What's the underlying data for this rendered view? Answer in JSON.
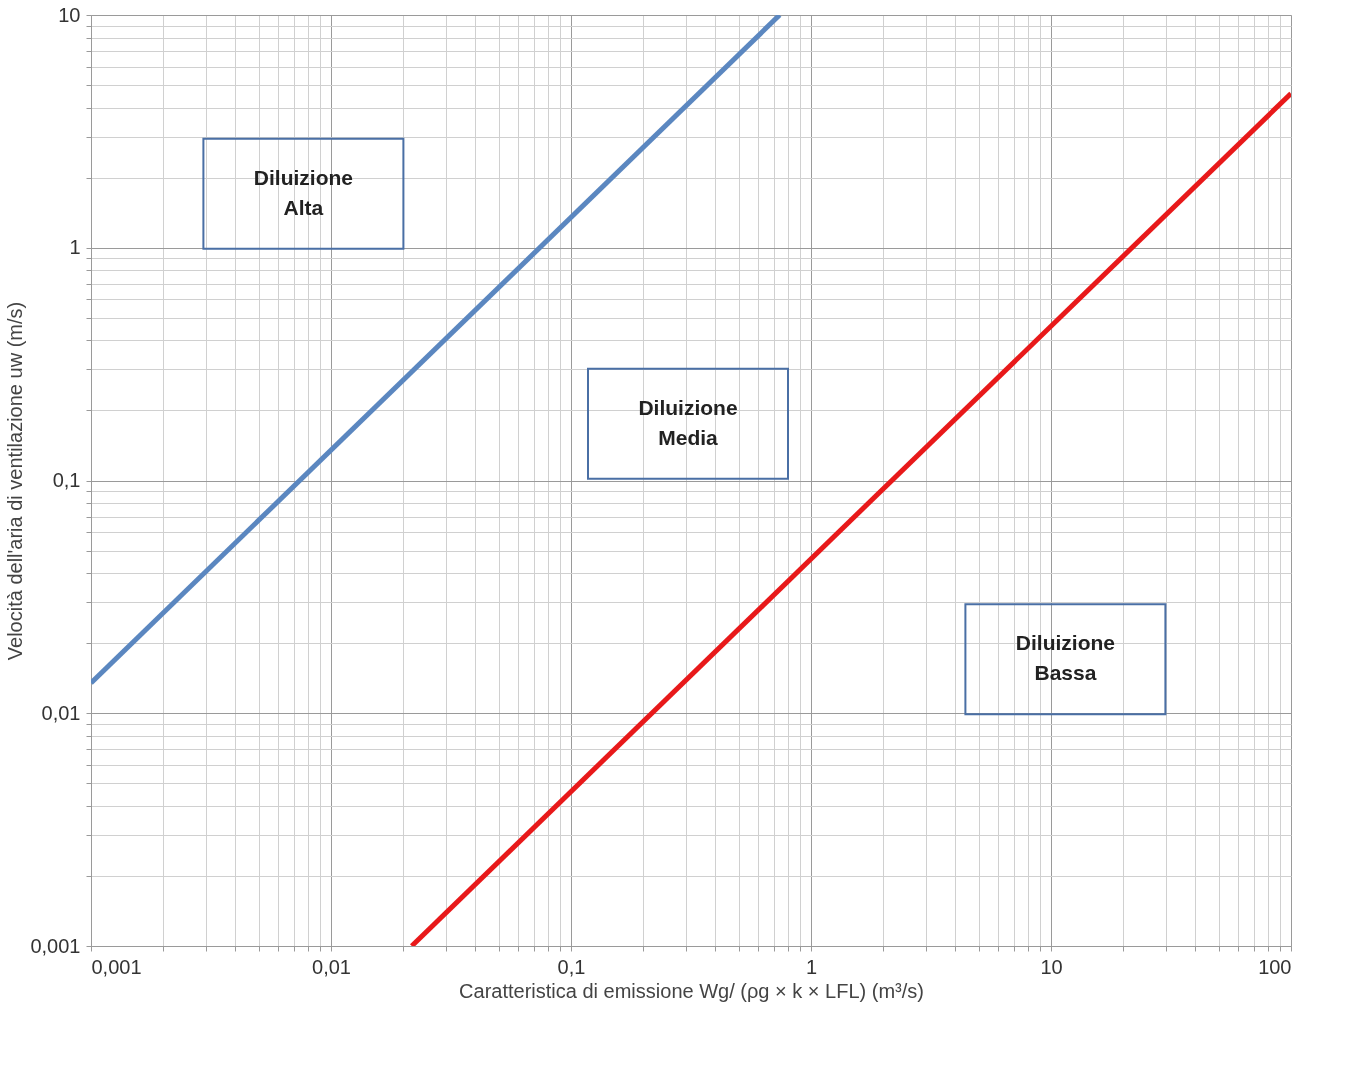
{
  "chart_data": {
    "type": "line",
    "xlabel": "Caratteristica di emissione  Wg/ (ρg × k × LFL)   (m³/s)",
    "ylabel": "Velocità dell'aria di ventilazione uw  (m/s)",
    "log": "xy",
    "grid": true,
    "marker": "none",
    "line_style": "solid",
    "xlim": [
      0.001,
      100
    ],
    "ylim": [
      0.001,
      10
    ],
    "xticks": [
      {
        "value": 0.001,
        "label": "0,001"
      },
      {
        "value": 0.002,
        "label": null
      },
      {
        "value": 0.003,
        "label": null
      },
      {
        "value": 0.004,
        "label": null
      },
      {
        "value": 0.005,
        "label": null
      },
      {
        "value": 0.006,
        "label": null
      },
      {
        "value": 0.007,
        "label": null
      },
      {
        "value": 0.008,
        "label": null
      },
      {
        "value": 0.009,
        "label": null
      },
      {
        "value": 0.01,
        "label": "0,01"
      },
      {
        "value": 0.02,
        "label": null
      },
      {
        "value": 0.03,
        "label": null
      },
      {
        "value": 0.04,
        "label": null
      },
      {
        "value": 0.05,
        "label": null
      },
      {
        "value": 0.06,
        "label": null
      },
      {
        "value": 0.07,
        "label": null
      },
      {
        "value": 0.08,
        "label": null
      },
      {
        "value": 0.09,
        "label": null
      },
      {
        "value": 0.1,
        "label": "0,1"
      },
      {
        "value": 0.2,
        "label": null
      },
      {
        "value": 0.3,
        "label": null
      },
      {
        "value": 0.4,
        "label": null
      },
      {
        "value": 0.5,
        "label": null
      },
      {
        "value": 0.6,
        "label": null
      },
      {
        "value": 0.7,
        "label": null
      },
      {
        "value": 0.8,
        "label": null
      },
      {
        "value": 0.9,
        "label": null
      },
      1,
      {
        "value": 2,
        "label": null
      },
      {
        "value": 3,
        "label": null
      },
      {
        "value": 4,
        "label": null
      },
      {
        "value": 5,
        "label": null
      },
      {
        "value": 6,
        "label": null
      },
      {
        "value": 7,
        "label": null
      },
      {
        "value": 8,
        "label": null
      },
      {
        "value": 9,
        "label": null
      },
      10,
      {
        "value": 20,
        "label": null
      },
      {
        "value": 30,
        "label": null
      },
      {
        "value": 40,
        "label": null
      },
      {
        "value": 50,
        "label": null
      },
      {
        "value": 60,
        "label": null
      },
      {
        "value": 70,
        "label": null
      },
      {
        "value": 80,
        "label": null
      },
      {
        "value": 90,
        "label": null
      },
      100
    ],
    "yticks": [
      {
        "value": 0.001,
        "label": "0,001"
      },
      {
        "value": 0.002,
        "label": null
      },
      {
        "value": 0.003,
        "label": null
      },
      {
        "value": 0.004,
        "label": null
      },
      {
        "value": 0.005,
        "label": null
      },
      {
        "value": 0.006,
        "label": null
      },
      {
        "value": 0.007,
        "label": null
      },
      {
        "value": 0.008,
        "label": null
      },
      {
        "value": 0.009,
        "label": null
      },
      {
        "value": 0.01,
        "label": "0,01"
      },
      {
        "value": 0.02,
        "label": null
      },
      {
        "value": 0.03,
        "label": null
      },
      {
        "value": 0.04,
        "label": null
      },
      {
        "value": 0.05,
        "label": null
      },
      {
        "value": 0.06,
        "label": null
      },
      {
        "value": 0.07,
        "label": null
      },
      {
        "value": 0.08,
        "label": null
      },
      {
        "value": 0.09,
        "label": null
      },
      {
        "value": 0.1,
        "label": "0,1"
      },
      {
        "value": 0.2,
        "label": null
      },
      {
        "value": 0.3,
        "label": null
      },
      {
        "value": 0.4,
        "label": null
      },
      {
        "value": 0.5,
        "label": null
      },
      {
        "value": 0.6,
        "label": null
      },
      {
        "value": 0.7,
        "label": null
      },
      {
        "value": 0.8,
        "label": null
      },
      {
        "value": 0.9,
        "label": null
      },
      1,
      {
        "value": 2,
        "label": null
      },
      {
        "value": 3,
        "label": null
      },
      {
        "value": 4,
        "label": null
      },
      {
        "value": 5,
        "label": null
      },
      {
        "value": 6,
        "label": null
      },
      {
        "value": 7,
        "label": null
      },
      {
        "value": 8,
        "label": null
      },
      {
        "value": 9,
        "label": null
      },
      10
    ],
    "series": [
      {
        "color": "#5b87c0",
        "x": [
          0.001,
          0.74
        ],
        "values": [
          0.0135,
          10
        ]
      },
      {
        "color": "#e8191a",
        "x": [
          0.0217,
          100
        ],
        "values": [
          0.001,
          4.6
        ]
      }
    ],
    "annotations": [
      "Diluizione\nAlta",
      "Diluizione\nMedia",
      "Diluizione\nBassa"
    ]
  }
}
